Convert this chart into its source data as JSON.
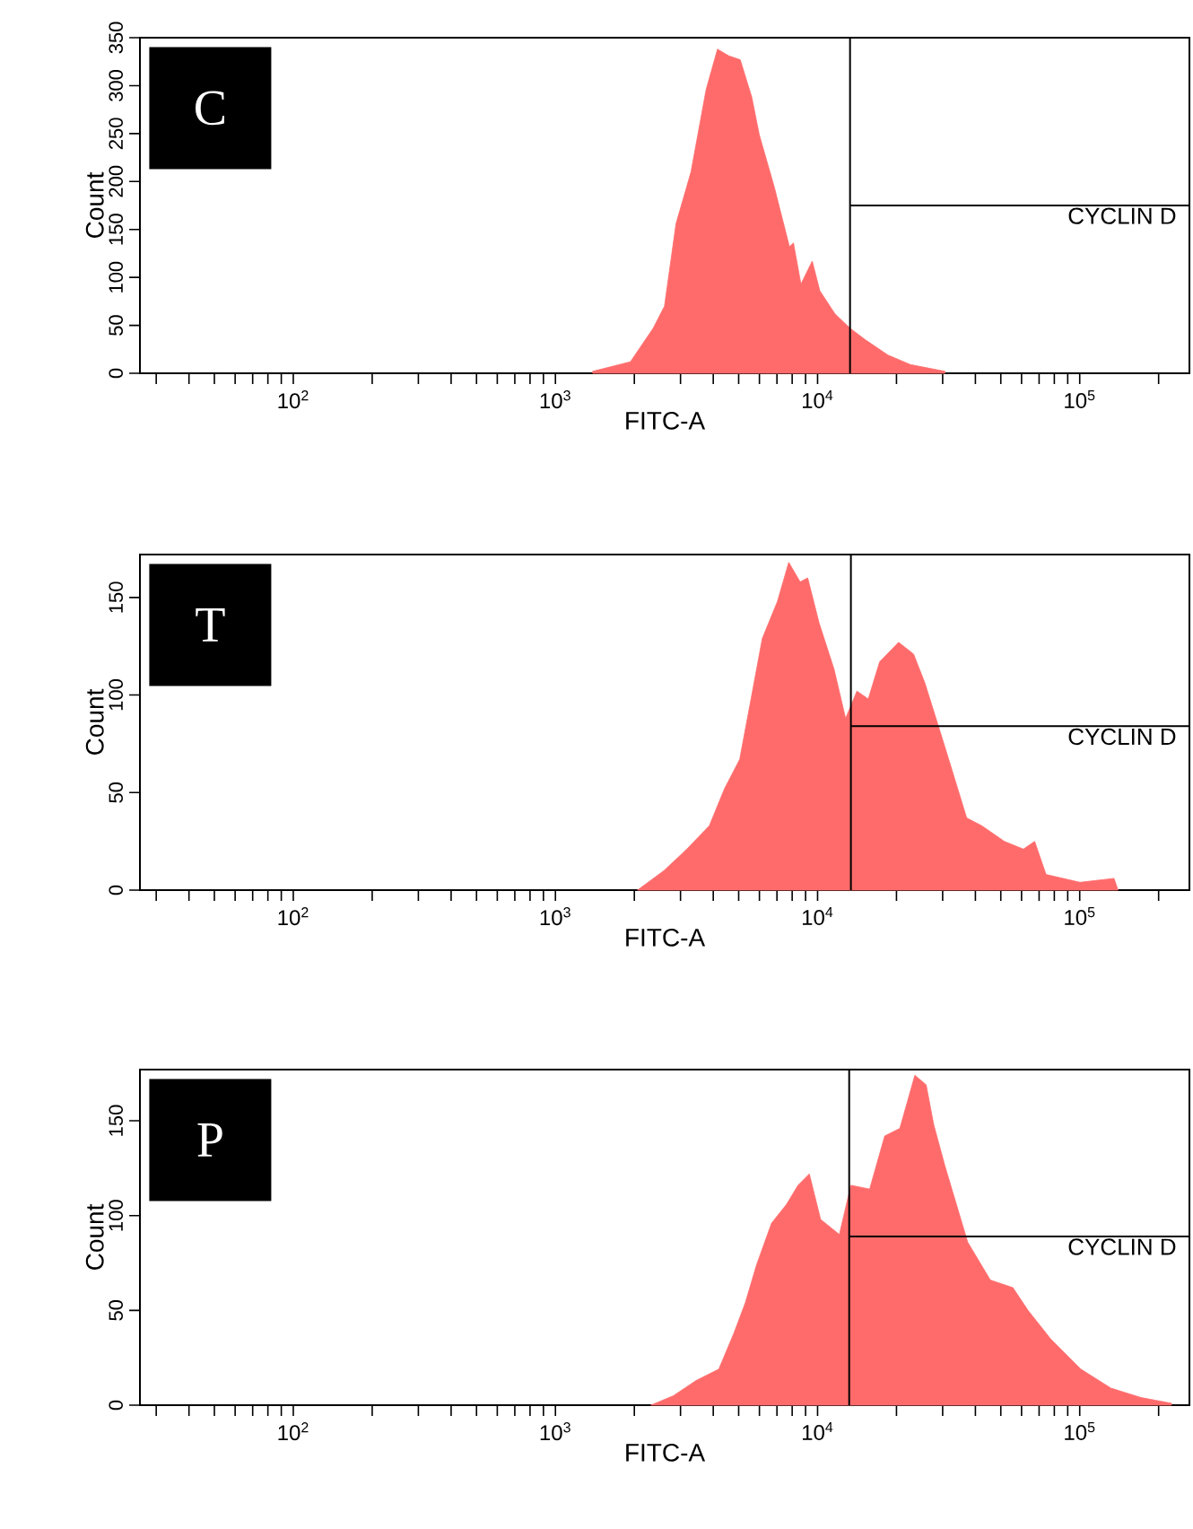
{
  "chart_data": [
    {
      "type": "area",
      "title": "C",
      "xlabel": "FITC-A",
      "ylabel": "Count",
      "log": "x",
      "xlim": [
        26,
        262144
      ],
      "ylim": [
        0,
        350
      ],
      "xticks": [
        {
          "value": 30,
          "label": null
        },
        {
          "value": 40,
          "label": null
        },
        {
          "value": 50,
          "label": null
        },
        {
          "value": 60,
          "label": null
        },
        {
          "value": 70,
          "label": null
        },
        {
          "value": 80,
          "label": null
        },
        {
          "value": 90,
          "label": null
        },
        {
          "value": 100,
          "label": "10$^{2}$"
        },
        {
          "value": 200,
          "label": null
        },
        {
          "value": 300,
          "label": null
        },
        {
          "value": 400,
          "label": null
        },
        {
          "value": 500,
          "label": null
        },
        {
          "value": 600,
          "label": null
        },
        {
          "value": 700,
          "label": null
        },
        {
          "value": 800,
          "label": null
        },
        {
          "value": 900,
          "label": null
        },
        {
          "value": 1000,
          "label": "10$^{3}$"
        },
        {
          "value": 2000,
          "label": null
        },
        {
          "value": 3000,
          "label": null
        },
        {
          "value": 4000,
          "label": null
        },
        {
          "value": 5000,
          "label": null
        },
        {
          "value": 6000,
          "label": null
        },
        {
          "value": 7000,
          "label": null
        },
        {
          "value": 8000,
          "label": null
        },
        {
          "value": 9000,
          "label": null
        },
        {
          "value": 10000,
          "label": "10$^{4}$"
        },
        {
          "value": 20000,
          "label": null
        },
        {
          "value": 30000,
          "label": null
        },
        {
          "value": 40000,
          "label": null
        },
        {
          "value": 50000,
          "label": null
        },
        {
          "value": 60000,
          "label": null
        },
        {
          "value": 70000,
          "label": null
        },
        {
          "value": 80000,
          "label": null
        },
        {
          "value": 90000,
          "label": null
        },
        {
          "value": 100000,
          "label": "10$^{5}$"
        },
        {
          "value": 200000,
          "label": null
        }
      ],
      "yticks": [
        0,
        50,
        100,
        150,
        200,
        250,
        300,
        350
      ],
      "series": [
        {
          "type": "area",
          "color": "#ff6b6b",
          "x": [
            1387,
            1932,
            2360,
            2606,
            2884,
            3290,
            3758,
            4152,
            4590,
            5070,
            5610,
            5990,
            6840,
            7810,
            8090,
            8640,
            9540,
            10200,
            11650,
            13300,
            15200,
            18560,
            22650,
            30600
          ],
          "values": [
            2,
            12,
            47,
            70,
            156,
            210,
            296,
            338,
            331,
            327,
            288,
            249,
            194,
            132,
            136,
            93,
            117,
            86,
            62,
            47,
            35,
            19,
            9,
            2
          ]
        },
        {
          "type": "line",
          "name": "CYCLIN D",
          "color": "#000000",
          "x": [
            13300,
            262144
          ],
          "values": [
            175,
            175
          ]
        }
      ],
      "ref_lines": [
        {
          "axis": "x",
          "value": 13300,
          "color": "#000000"
        }
      ]
    },
    {
      "type": "area",
      "title": "T",
      "xlabel": "FITC-A",
      "ylabel": "Count",
      "log": "x",
      "xlim": [
        26,
        262144
      ],
      "ylim": [
        0,
        172
      ],
      "xticks": [
        {
          "value": 30,
          "label": null
        },
        {
          "value": 40,
          "label": null
        },
        {
          "value": 50,
          "label": null
        },
        {
          "value": 60,
          "label": null
        },
        {
          "value": 70,
          "label": null
        },
        {
          "value": 80,
          "label": null
        },
        {
          "value": 90,
          "label": null
        },
        {
          "value": 100,
          "label": "10$^{2}$"
        },
        {
          "value": 200,
          "label": null
        },
        {
          "value": 300,
          "label": null
        },
        {
          "value": 400,
          "label": null
        },
        {
          "value": 500,
          "label": null
        },
        {
          "value": 600,
          "label": null
        },
        {
          "value": 700,
          "label": null
        },
        {
          "value": 800,
          "label": null
        },
        {
          "value": 900,
          "label": null
        },
        {
          "value": 1000,
          "label": "10$^{3}$"
        },
        {
          "value": 2000,
          "label": null
        },
        {
          "value": 3000,
          "label": null
        },
        {
          "value": 4000,
          "label": null
        },
        {
          "value": 5000,
          "label": null
        },
        {
          "value": 6000,
          "label": null
        },
        {
          "value": 7000,
          "label": null
        },
        {
          "value": 8000,
          "label": null
        },
        {
          "value": 9000,
          "label": null
        },
        {
          "value": 10000,
          "label": "10$^{4}$"
        },
        {
          "value": 20000,
          "label": null
        },
        {
          "value": 30000,
          "label": null
        },
        {
          "value": 40000,
          "label": null
        },
        {
          "value": 50000,
          "label": null
        },
        {
          "value": 60000,
          "label": null
        },
        {
          "value": 70000,
          "label": null
        },
        {
          "value": 80000,
          "label": null
        },
        {
          "value": 90000,
          "label": null
        },
        {
          "value": 100000,
          "label": "10$^{5}$"
        },
        {
          "value": 200000,
          "label": null
        }
      ],
      "yticks": [
        0,
        50,
        100,
        150
      ],
      "series": [
        {
          "type": "area",
          "color": "#ff6b6b",
          "x": [
            2056,
            2594,
            3170,
            3865,
            4415,
            5045,
            5575,
            6155,
            7030,
            7765,
            8580,
            9170,
            10130,
            11570,
            12790,
            14130,
            15610,
            17250,
            20370,
            23240,
            25690,
            30340,
            37050,
            42300,
            51600,
            61000,
            67300,
            74400,
            100200,
            135200,
            140000
          ],
          "values": [
            0,
            10,
            21,
            33,
            52,
            67,
            98,
            129,
            148,
            168,
            158,
            160,
            137,
            113,
            88,
            102,
            98,
            117,
            127,
            121,
            106,
            75,
            37,
            33,
            25,
            21,
            25,
            8,
            4,
            6,
            0
          ]
        },
        {
          "type": "line",
          "name": "CYCLIN D",
          "color": "#000000",
          "x": [
            13400,
            262144
          ],
          "values": [
            84,
            84
          ]
        }
      ],
      "ref_lines": [
        {
          "axis": "x",
          "value": 13400,
          "color": "#000000"
        }
      ]
    },
    {
      "type": "area",
      "title": "P",
      "xlabel": "FITC-A",
      "ylabel": "Count",
      "log": "x",
      "xlim": [
        26,
        262144
      ],
      "ylim": [
        0,
        177
      ],
      "xticks": [
        {
          "value": 30,
          "label": null
        },
        {
          "value": 40,
          "label": null
        },
        {
          "value": 50,
          "label": null
        },
        {
          "value": 60,
          "label": null
        },
        {
          "value": 70,
          "label": null
        },
        {
          "value": 80,
          "label": null
        },
        {
          "value": 90,
          "label": null
        },
        {
          "value": 100,
          "label": "10$^{2}$"
        },
        {
          "value": 200,
          "label": null
        },
        {
          "value": 300,
          "label": null
        },
        {
          "value": 400,
          "label": null
        },
        {
          "value": 500,
          "label": null
        },
        {
          "value": 600,
          "label": null
        },
        {
          "value": 700,
          "label": null
        },
        {
          "value": 800,
          "label": null
        },
        {
          "value": 900,
          "label": null
        },
        {
          "value": 1000,
          "label": "10$^{3}$"
        },
        {
          "value": 2000,
          "label": null
        },
        {
          "value": 3000,
          "label": null
        },
        {
          "value": 4000,
          "label": null
        },
        {
          "value": 5000,
          "label": null
        },
        {
          "value": 6000,
          "label": null
        },
        {
          "value": 7000,
          "label": null
        },
        {
          "value": 8000,
          "label": null
        },
        {
          "value": 9000,
          "label": null
        },
        {
          "value": 10000,
          "label": "10$^{4}$"
        },
        {
          "value": 20000,
          "label": null
        },
        {
          "value": 30000,
          "label": null
        },
        {
          "value": 40000,
          "label": null
        },
        {
          "value": 50000,
          "label": null
        },
        {
          "value": 60000,
          "label": null
        },
        {
          "value": 70000,
          "label": null
        },
        {
          "value": 80000,
          "label": null
        },
        {
          "value": 90000,
          "label": null
        },
        {
          "value": 100000,
          "label": "10$^{5}$"
        },
        {
          "value": 200000,
          "label": null
        }
      ],
      "yticks": [
        0,
        50,
        100,
        150
      ],
      "series": [
        {
          "type": "area",
          "color": "#ff6b6b",
          "x": [
            2312,
            2820,
            3440,
            4200,
            4795,
            5300,
            5850,
            6675,
            7620,
            8420,
            9300,
            10270,
            12110,
            13400,
            15800,
            18040,
            20600,
            23500,
            25950,
            27730,
            30630,
            37380,
            45600,
            55600,
            63500,
            77400,
            101000,
            131500,
            171700,
            223900
          ],
          "values": [
            0,
            5,
            13,
            19,
            38,
            54,
            74,
            96,
            106,
            116,
            122,
            98,
            90,
            116,
            114,
            142,
            146,
            174,
            169,
            148,
            126,
            86,
            66,
            62,
            50,
            35,
            19,
            9,
            4,
            1
          ]
        },
        {
          "type": "line",
          "name": "CYCLIN D",
          "color": "#000000",
          "x": [
            13200,
            262144
          ],
          "values": [
            89,
            89
          ]
        }
      ],
      "ref_lines": [
        {
          "axis": "x",
          "value": 13200,
          "color": "#000000"
        }
      ]
    }
  ]
}
